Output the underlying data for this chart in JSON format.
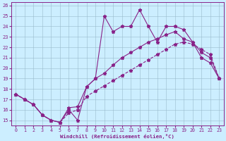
{
  "bg_color": "#cceeff",
  "line_color": "#882288",
  "grid_color": "#99bbcc",
  "xlabel": "Windchill (Refroidissement éolien,°C)",
  "xlim": [
    -0.5,
    23.5
  ],
  "ylim": [
    14.5,
    26.3
  ],
  "xticks": [
    0,
    1,
    2,
    3,
    4,
    5,
    6,
    7,
    8,
    9,
    10,
    11,
    12,
    13,
    14,
    15,
    16,
    17,
    18,
    19,
    20,
    21,
    22,
    23
  ],
  "yticks": [
    15,
    16,
    17,
    18,
    19,
    20,
    21,
    22,
    23,
    24,
    25,
    26
  ],
  "line1_x": [
    0,
    1,
    2,
    3,
    4,
    5,
    6,
    7,
    8,
    9,
    10,
    11,
    12,
    13,
    14,
    15,
    16,
    17,
    18,
    19,
    20,
    21,
    22,
    23
  ],
  "line1_y": [
    17.5,
    17.0,
    16.5,
    15.5,
    15.0,
    14.8,
    16.0,
    15.0,
    18.2,
    19.0,
    25.0,
    23.5,
    24.0,
    24.0,
    25.6,
    24.0,
    22.5,
    24.0,
    24.0,
    23.7,
    22.5,
    21.0,
    20.5,
    19.0
  ],
  "line2_x": [
    0,
    1,
    2,
    3,
    4,
    5,
    6,
    7,
    8,
    9,
    10,
    11,
    12,
    13,
    14,
    15,
    16,
    17,
    18,
    19,
    20,
    21,
    22,
    23
  ],
  "line2_y": [
    17.5,
    17.0,
    16.5,
    15.5,
    15.0,
    14.8,
    16.2,
    16.3,
    18.2,
    19.0,
    19.5,
    20.3,
    21.0,
    21.5,
    22.0,
    22.5,
    22.8,
    23.2,
    23.5,
    22.8,
    22.5,
    21.5,
    21.0,
    19.0
  ],
  "line3_x": [
    0,
    1,
    2,
    3,
    4,
    5,
    6,
    7,
    8,
    9,
    10,
    11,
    12,
    13,
    14,
    15,
    16,
    17,
    18,
    19,
    20,
    21,
    22,
    23
  ],
  "line3_y": [
    17.5,
    17.0,
    16.5,
    15.5,
    15.0,
    14.8,
    15.7,
    16.0,
    17.3,
    17.8,
    18.3,
    18.8,
    19.3,
    19.8,
    20.3,
    20.8,
    21.3,
    21.8,
    22.3,
    22.5,
    22.3,
    21.8,
    21.3,
    19.0
  ]
}
